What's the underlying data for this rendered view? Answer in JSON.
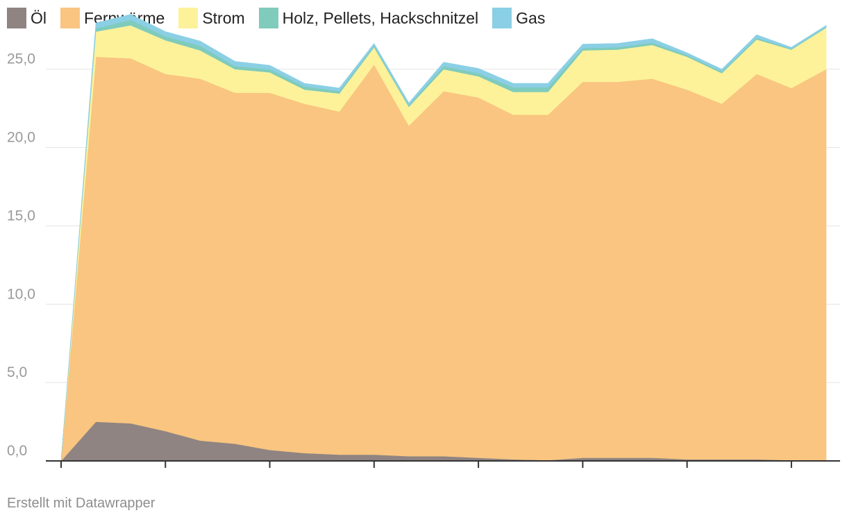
{
  "chart_data": {
    "type": "area",
    "stacked": true,
    "ylim": [
      0,
      28
    ],
    "yticks": [
      0,
      5,
      10,
      15,
      20,
      25
    ],
    "ytick_labels": [
      "0,0",
      "5,0",
      "10,0",
      "15,0",
      "20,0",
      "25,0"
    ],
    "x": [
      0,
      1,
      2,
      3,
      4,
      5,
      6,
      7,
      8,
      9,
      10,
      11,
      12,
      13,
      14,
      15,
      16,
      17,
      18,
      19,
      20,
      21,
      22
    ],
    "grid": true,
    "legend_position": "top-left",
    "series": [
      {
        "name": "Öl",
        "color": "#8f8482",
        "values": [
          0,
          2.5,
          2.4,
          1.9,
          1.3,
          1.1,
          0.7,
          0.5,
          0.4,
          0.4,
          0.3,
          0.3,
          0.2,
          0.1,
          0.05,
          0.2,
          0.2,
          0.2,
          0.1,
          0.1,
          0.1,
          0.05,
          0.05
        ]
      },
      {
        "name": "Fernwärme",
        "color": "#f9c580",
        "values": [
          0,
          23.3,
          23.3,
          22.8,
          23.1,
          22.4,
          22.8,
          22.3,
          21.9,
          24.9,
          21.1,
          23.3,
          23.0,
          22.0,
          22.05,
          24.0,
          24.0,
          24.2,
          23.6,
          22.7,
          24.6,
          23.75,
          24.95
        ]
      },
      {
        "name": "Strom",
        "color": "#fdf29a",
        "values": [
          0,
          1.6,
          2.1,
          2.15,
          1.8,
          1.5,
          1.3,
          0.9,
          1.15,
          1.1,
          1.2,
          1.4,
          1.35,
          1.45,
          1.45,
          2.0,
          2.05,
          2.15,
          2.1,
          1.95,
          2.2,
          2.45,
          2.65
        ]
      },
      {
        "name": "Holz, Pellets, Hackschnitzel",
        "color": "#7fcbbc",
        "values": [
          0,
          0.2,
          0.35,
          0.25,
          0.3,
          0.2,
          0.2,
          0.2,
          0.15,
          0.1,
          0.1,
          0.2,
          0.2,
          0.3,
          0.3,
          0.15,
          0.15,
          0.15,
          0.1,
          0.1,
          0.1,
          0.05,
          0.05
        ]
      },
      {
        "name": "Gas",
        "color": "#8bcfe5",
        "values": [
          0,
          0.35,
          0.35,
          0.3,
          0.3,
          0.3,
          0.25,
          0.2,
          0.2,
          0.15,
          0.15,
          0.25,
          0.3,
          0.25,
          0.25,
          0.25,
          0.25,
          0.25,
          0.15,
          0.15,
          0.2,
          0.1,
          0.1
        ]
      }
    ]
  },
  "footer": {
    "credit": "Erstellt mit Datawrapper"
  }
}
